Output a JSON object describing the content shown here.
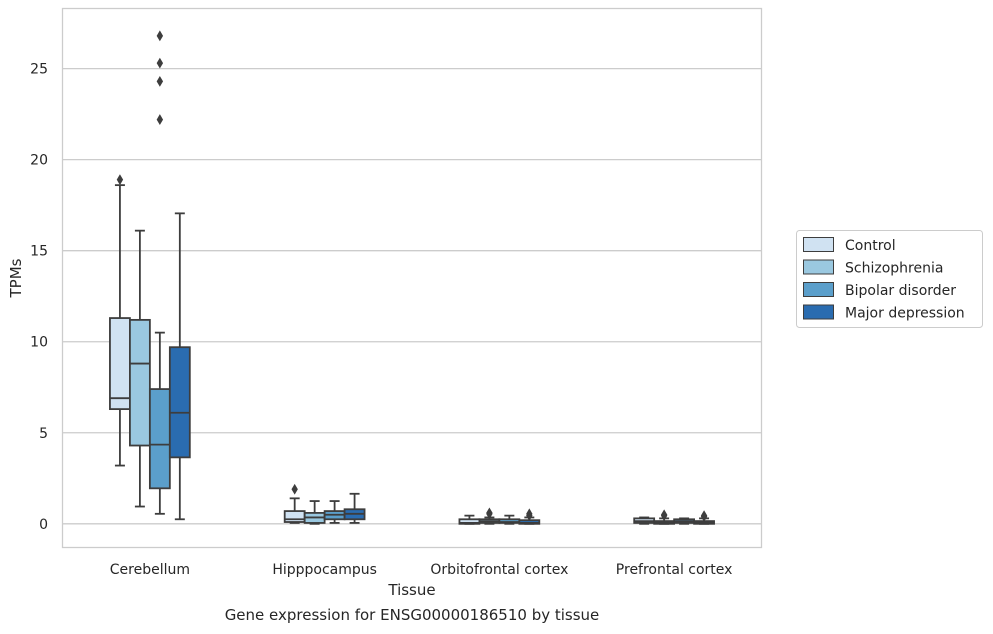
{
  "caption": "Gene expression for ENSG00000186510 by tissue",
  "chart_data": {
    "type": "boxplot",
    "xlabel": "Tissue",
    "ylabel": "TPMs",
    "ylim": [
      -1.3,
      28.3
    ],
    "yticks": [
      0,
      5,
      10,
      15,
      20,
      25
    ],
    "grid": true,
    "legend_position": "right, outside plot",
    "categories": [
      "Cerebellum",
      "Hipppocampus",
      "Orbitofrontal cortex",
      "Prefrontal cortex"
    ],
    "series": [
      {
        "name": "Control",
        "color": "#d0e2f2",
        "boxes": [
          {
            "whislo": 3.2,
            "q1": 6.3,
            "med": 6.9,
            "q3": 11.3,
            "whishi": 18.6,
            "fliers": [
              18.9
            ]
          },
          {
            "whislo": 0.05,
            "q1": 0.1,
            "med": 0.25,
            "q3": 0.7,
            "whishi": 1.4,
            "fliers": [
              1.9
            ]
          },
          {
            "whislo": 0.0,
            "q1": 0.0,
            "med": 0.05,
            "q3": 0.25,
            "whishi": 0.45,
            "fliers": []
          },
          {
            "whislo": 0.0,
            "q1": 0.05,
            "med": 0.15,
            "q3": 0.3,
            "whishi": 0.35,
            "fliers": []
          }
        ]
      },
      {
        "name": "Schizophrenia",
        "color": "#9ac8e0",
        "boxes": [
          {
            "whislo": 0.95,
            "q1": 4.3,
            "med": 8.8,
            "q3": 11.2,
            "whishi": 16.1,
            "fliers": []
          },
          {
            "whislo": 0.0,
            "q1": 0.05,
            "med": 0.35,
            "q3": 0.6,
            "whishi": 1.25,
            "fliers": []
          },
          {
            "whislo": 0.0,
            "q1": 0.05,
            "med": 0.15,
            "q3": 0.25,
            "whishi": 0.35,
            "fliers": [
              0.55,
              0.6
            ]
          },
          {
            "whislo": 0.0,
            "q1": 0.0,
            "med": 0.05,
            "q3": 0.15,
            "whishi": 0.3,
            "fliers": [
              0.45,
              0.5
            ]
          }
        ]
      },
      {
        "name": "Bipolar disorder",
        "color": "#5b9fcb",
        "boxes": [
          {
            "whislo": 0.55,
            "q1": 1.95,
            "med": 4.35,
            "q3": 7.4,
            "whishi": 10.5,
            "fliers": [
              22.2,
              24.3,
              25.3,
              26.8
            ]
          },
          {
            "whislo": 0.05,
            "q1": 0.25,
            "med": 0.5,
            "q3": 0.7,
            "whishi": 1.25,
            "fliers": []
          },
          {
            "whislo": 0.0,
            "q1": 0.05,
            "med": 0.1,
            "q3": 0.25,
            "whishi": 0.45,
            "fliers": []
          },
          {
            "whislo": 0.0,
            "q1": 0.05,
            "med": 0.15,
            "q3": 0.25,
            "whishi": 0.3,
            "fliers": []
          }
        ]
      },
      {
        "name": "Major depression",
        "color": "#2a6cb0",
        "boxes": [
          {
            "whislo": 0.25,
            "q1": 3.65,
            "med": 6.1,
            "q3": 9.7,
            "whishi": 17.05,
            "fliers": []
          },
          {
            "whislo": 0.05,
            "q1": 0.25,
            "med": 0.55,
            "q3": 0.8,
            "whishi": 1.65,
            "fliers": []
          },
          {
            "whislo": 0.0,
            "q1": 0.0,
            "med": 0.05,
            "q3": 0.2,
            "whishi": 0.35,
            "fliers": [
              0.45,
              0.55
            ]
          },
          {
            "whislo": 0.0,
            "q1": 0.0,
            "med": 0.05,
            "q3": 0.15,
            "whishi": 0.3,
            "fliers": [
              0.4,
              0.45
            ]
          }
        ]
      }
    ]
  }
}
